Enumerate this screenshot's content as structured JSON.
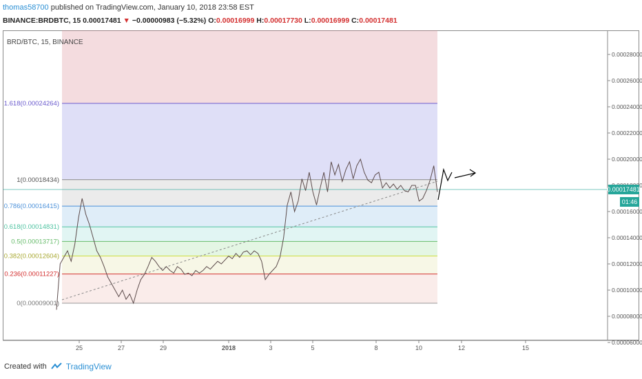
{
  "header": {
    "user": "thomas58700",
    "published": "published on TradingView.com, January 10, 2018 23:58 EST",
    "symbol": "BINANCE:BRDBTC, 15",
    "last": "0.00017481",
    "change": "−0.00000983 (−5.32%)",
    "o_label": "O:",
    "o_val": "0.00016999",
    "h_label": "H:",
    "h_val": "0.00017730",
    "l_label": "L:",
    "l_val": "0.00016999",
    "c_label": "C:",
    "c_val": "0.00017481"
  },
  "footer": {
    "created": "Created with",
    "brand": "TradingView"
  },
  "colors": {
    "down": "#d32f2f",
    "up": "#26a69a",
    "accent": "#2a8fd4",
    "price_tag": "#26a69a"
  },
  "chart_data": {
    "type": "line",
    "title": "BRD/BTC, 15, BINANCE",
    "ylim": [
      6e-05,
      0.0003
    ],
    "y_ticks": [
      "0.00028000",
      "0.00026000",
      "0.00024000",
      "0.00022000",
      "0.00020000",
      "0.00018000",
      "0.00016000",
      "0.00014000",
      "0.00012000",
      "0.00010000",
      "0.00008000",
      "0.00006000"
    ],
    "x_ticks": [
      "25",
      "27",
      "29",
      "2018",
      "3",
      "5",
      "8",
      "10",
      "12",
      "15"
    ],
    "price_tag": "0.00017481",
    "time_tag": "01:46",
    "fib_levels": [
      {
        "ratio": "1.618",
        "label": "1.618(0.00024264)",
        "price": 0.00024264
      },
      {
        "ratio": "1",
        "label": "1(0.00018434)",
        "price": 0.00018434
      },
      {
        "ratio": "0.786",
        "label": "0.786(0.00016415)",
        "price": 0.00016415
      },
      {
        "ratio": "0.618",
        "label": "0.618(0.00014831)",
        "price": 0.00014831
      },
      {
        "ratio": "0.5",
        "label": "0.5(0.00013717)",
        "price": 0.00013717
      },
      {
        "ratio": "0.382",
        "label": "0.382(0.00012604)",
        "price": 0.00012604
      },
      {
        "ratio": "0.236",
        "label": "0.236(0.00011227)",
        "price": 0.00011227
      },
      {
        "ratio": "0",
        "label": "0(0.00009001)",
        "price": 9.001e-05
      }
    ],
    "series": [
      {
        "values": [
          8.5e-05,
          0.00012,
          0.000125,
          0.00013,
          0.000122,
          0.000135,
          0.000155,
          0.00017,
          0.000158,
          0.00015,
          0.00014,
          0.00013,
          0.000125,
          0.000118,
          0.00011,
          0.000105,
          0.0001,
          9.5e-05,
          0.0001,
          9.3e-05,
          9.7e-05,
          9e-05,
          0.0001,
          0.000108,
          0.000112,
          0.000118,
          0.000125,
          0.000122,
          0.000118,
          0.000115,
          0.000118,
          0.000115,
          0.000113,
          0.000118,
          0.000116,
          0.000112,
          0.000113,
          0.000111,
          0.000115,
          0.000113,
          0.000115,
          0.000118,
          0.000116,
          0.000119,
          0.000122,
          0.00012,
          0.000123,
          0.000126,
          0.000124,
          0.000128,
          0.000125,
          0.000129,
          0.00013,
          0.000127,
          0.00013,
          0.000128,
          0.000122,
          0.000108,
          0.000112,
          0.000115,
          0.000118,
          0.000125,
          0.00014,
          0.000165,
          0.000175,
          0.00016,
          0.000168,
          0.000185,
          0.000176,
          0.00019,
          0.000175,
          0.000165,
          0.000178,
          0.00019,
          0.000175,
          0.000198,
          0.000188,
          0.000196,
          0.000183,
          0.000192,
          0.000198,
          0.000185,
          0.000195,
          0.0002,
          0.00019,
          0.000184,
          0.000182,
          0.000188,
          0.00019,
          0.000178,
          0.000182,
          0.000178,
          0.000181,
          0.000177,
          0.00018,
          0.000176,
          0.000175,
          0.00018,
          0.00018,
          0.000168,
          0.00017,
          0.000176,
          0.000184,
          0.000195,
          0.000175
        ]
      }
    ]
  }
}
